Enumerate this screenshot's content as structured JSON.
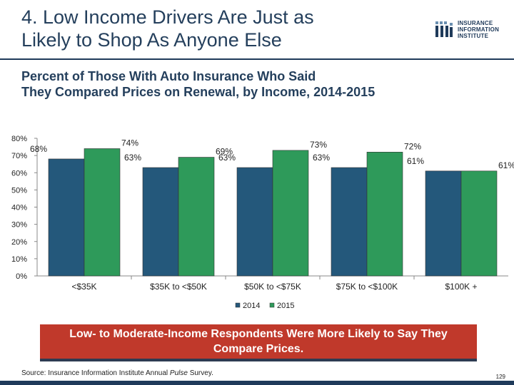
{
  "slide": {
    "title_line1": "4. Low Income Drivers Are Just as",
    "title_line2": "Likely to Shop As Anyone Else",
    "subtitle_line1": "Percent of Those With Auto Insurance Who Said",
    "subtitle_line2": "They Compared Prices on Renewal, by Income, 2014-2015",
    "callout_text": "Low- to Moderate-Income Respondents Were More Likely to Say They Compare Prices.",
    "source_prefix": "Source: Insurance Information Institute Annual ",
    "source_italic": "Pulse",
    "source_suffix": " Survey.",
    "page_number": "129"
  },
  "logo": {
    "line1": "INSURANCE",
    "line2": "INFORMATION",
    "line3": "INSTITUTE"
  },
  "colors": {
    "series_2014": "#24587b",
    "series_2015": "#2e9a5a",
    "title": "#243f5c",
    "callout_bg": "#c0392b"
  },
  "chart_data": {
    "type": "bar",
    "categories": [
      "<$35K",
      "$35K to <$50K",
      "$50K to <$75K",
      "$75K to <$100K",
      "$100K +"
    ],
    "series": [
      {
        "name": "2014",
        "values": [
          68,
          63,
          63,
          63,
          61
        ],
        "labels": [
          "68%",
          "63%",
          "63%",
          "63%",
          "61%"
        ]
      },
      {
        "name": "2015",
        "values": [
          74,
          69,
          73,
          72,
          61
        ],
        "labels": [
          "74%",
          "69%",
          "73%",
          "72%",
          "61%"
        ]
      }
    ],
    "y_ticks": [
      0,
      10,
      20,
      30,
      40,
      50,
      60,
      70,
      80
    ],
    "y_tick_labels": [
      "0%",
      "10%",
      "20%",
      "30%",
      "40%",
      "50%",
      "60%",
      "70%",
      "80%"
    ],
    "ylim": [
      0,
      80
    ],
    "legend": "bottom-center",
    "grid": false
  }
}
